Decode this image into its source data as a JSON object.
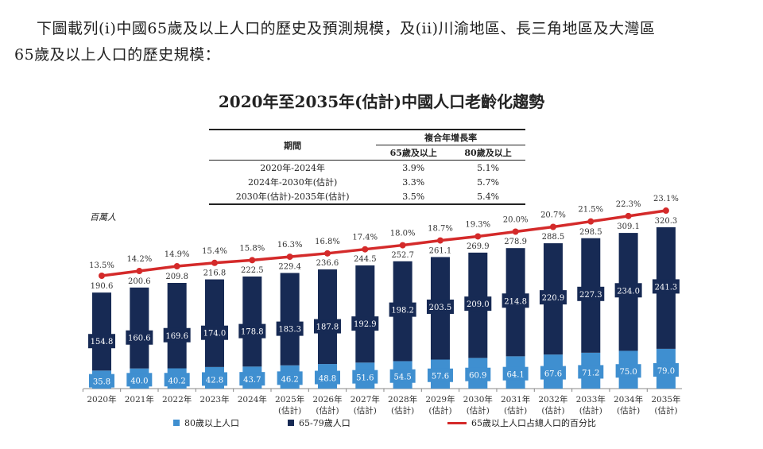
{
  "intro": {
    "line1": "下圖載列(i)中國65歲及以上人口的歷史及預測規模，及(ii)川渝地區、長三角地區及大灣區",
    "line2": "65歲及以上人口的歷史規模："
  },
  "cagr_table": {
    "header_period": "期間",
    "header_cagr": "複合年增長率",
    "col_65": "65歲及以上",
    "col_80": "80歲及以上",
    "rows": [
      {
        "period": "2020年-2024年",
        "c65": "3.9%",
        "c80": "5.1%"
      },
      {
        "period": "2024年-2030年(估計)",
        "c65": "3.3%",
        "c80": "5.7%"
      },
      {
        "period": "2030年(估計)-2035年(估計)",
        "c65": "3.5%",
        "c80": "5.4%"
      }
    ]
  },
  "chart_data": {
    "type": "bar",
    "stacked": true,
    "title": "2020年至2035年(估計)中國人口老齡化趨勢",
    "ylabel": "百萬人",
    "categories": [
      "2020年",
      "2021年",
      "2022年",
      "2023年",
      "2024年",
      "2025年",
      "2026年",
      "2027年",
      "2028年",
      "2029年",
      "2030年",
      "2031年",
      "2032年",
      "2033年",
      "2034年",
      "2035年"
    ],
    "category_sublabels": [
      "",
      "",
      "",
      "",
      "",
      "(估計)",
      "(估計)",
      "(估計)",
      "(估計)",
      "(估計)",
      "(估計)",
      "(估計)",
      "(估計)",
      "(估計)",
      "(估計)",
      "(估計)"
    ],
    "series": [
      {
        "name": "80歲以上人口",
        "color": "#3f8fd0",
        "values": [
          35.8,
          40.0,
          40.2,
          42.8,
          43.7,
          46.2,
          48.8,
          51.6,
          54.5,
          57.6,
          60.9,
          64.1,
          67.6,
          71.2,
          75.0,
          79.0
        ]
      },
      {
        "name": "65-79歲人口",
        "color": "#172a54",
        "values": [
          154.8,
          160.6,
          169.6,
          174.0,
          178.8,
          183.3,
          187.8,
          192.9,
          198.2,
          203.5,
          209.0,
          214.8,
          220.9,
          227.3,
          234.0,
          241.3
        ]
      }
    ],
    "totals": [
      190.6,
      200.6,
      209.8,
      216.8,
      222.5,
      229.4,
      236.6,
      244.5,
      252.7,
      261.1,
      269.9,
      278.9,
      288.5,
      298.5,
      309.1,
      320.3
    ],
    "line_series": {
      "name": "65歲以上人口占總人口的百分比",
      "color": "#d42a2a",
      "unit": "%",
      "values": [
        13.5,
        14.2,
        14.9,
        15.4,
        15.8,
        16.3,
        16.8,
        17.4,
        18.0,
        18.7,
        19.3,
        20.0,
        20.7,
        21.5,
        22.3,
        23.1
      ]
    }
  }
}
